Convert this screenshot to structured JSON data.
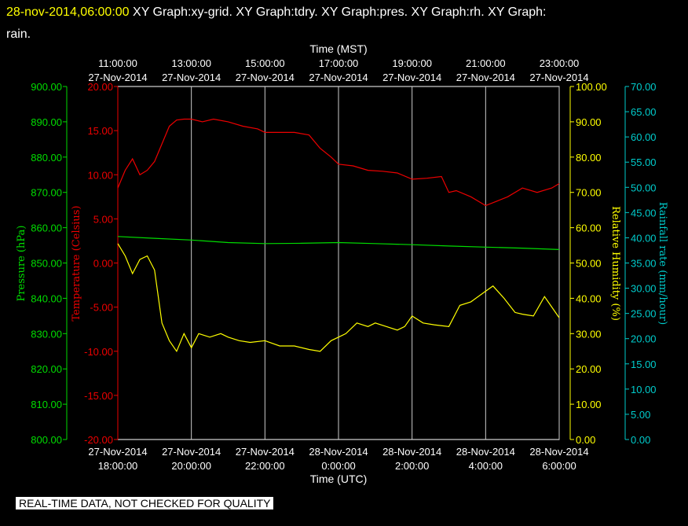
{
  "header": {
    "timestamp": "28-nov-2014,06:00:00",
    "graphs_line1": "  XY Graph:xy-grid.  XY Graph:tdry.  XY Graph:pres.  XY Graph:rh.  XY Graph:",
    "graphs_line2": "rain."
  },
  "footer_note": "REAL-TIME DATA, NOT CHECKED FOR QUALITY",
  "colors": {
    "pressure": "#00dd00",
    "temperature": "#ee0000",
    "humidity": "#ffff00",
    "rain": "#00cccc",
    "grid": "#cccccc"
  },
  "chart_data": {
    "type": "line",
    "x_top_label": "Time (MST)",
    "x_bottom_label": "Time (UTC)",
    "x_range_utc_hours": [
      18,
      30
    ],
    "x_ticks_utc_hours": [
      18,
      20,
      22,
      24,
      26,
      28,
      30
    ],
    "x_top_ticks": [
      {
        "time": "11:00:00",
        "date": "27-Nov-2014"
      },
      {
        "time": "13:00:00",
        "date": "27-Nov-2014"
      },
      {
        "time": "15:00:00",
        "date": "27-Nov-2014"
      },
      {
        "time": "17:00:00",
        "date": "27-Nov-2014"
      },
      {
        "time": "19:00:00",
        "date": "27-Nov-2014"
      },
      {
        "time": "21:00:00",
        "date": "27-Nov-2014"
      },
      {
        "time": "23:00:00",
        "date": "27-Nov-2014"
      }
    ],
    "x_bottom_ticks": [
      {
        "date": "27-Nov-2014",
        "time": "18:00:00"
      },
      {
        "date": "27-Nov-2014",
        "time": "20:00:00"
      },
      {
        "date": "27-Nov-2014",
        "time": "22:00:00"
      },
      {
        "date": "28-Nov-2014",
        "time": "0:00:00"
      },
      {
        "date": "28-Nov-2014",
        "time": "2:00:00"
      },
      {
        "date": "28-Nov-2014",
        "time": "4:00:00"
      },
      {
        "date": "28-Nov-2014",
        "time": "6:00:00"
      }
    ],
    "axes": {
      "pressure": {
        "label": "Pressure (hPa)",
        "range": [
          800,
          900
        ],
        "ticks": [
          "800.00",
          "810.00",
          "820.00",
          "830.00",
          "840.00",
          "850.00",
          "860.00",
          "870.00",
          "880.00",
          "890.00",
          "900.00"
        ]
      },
      "temperature": {
        "label": "Temperature (Celsius)",
        "range": [
          -20,
          20
        ],
        "ticks": [
          "-20.00",
          "-15.00",
          "-10.00",
          "-5.00",
          "0.00",
          "5.00",
          "10.00",
          "15.00",
          "20.00"
        ]
      },
      "humidity": {
        "label": "Relative Humidity (%)",
        "range": [
          0,
          100
        ],
        "ticks": [
          "0.00",
          "10.00",
          "20.00",
          "30.00",
          "40.00",
          "50.00",
          "60.00",
          "70.00",
          "80.00",
          "90.00",
          "100.00"
        ]
      },
      "rain": {
        "label": "Rainfall rate (mm/hour)",
        "range": [
          0,
          70
        ],
        "ticks": [
          "0.00",
          "5.00",
          "10.00",
          "15.00",
          "20.00",
          "25.00",
          "30.00",
          "35.00",
          "40.00",
          "45.00",
          "50.00",
          "55.00",
          "60.00",
          "65.00",
          "70.00"
        ]
      }
    },
    "series": [
      {
        "name": "tdry",
        "axis": "temperature",
        "x": [
          18.0,
          18.2,
          18.4,
          18.6,
          18.8,
          19.0,
          19.2,
          19.4,
          19.6,
          19.8,
          20.0,
          20.3,
          20.6,
          21.0,
          21.4,
          21.8,
          22.0,
          22.4,
          22.8,
          23.2,
          23.5,
          23.8,
          24.0,
          24.4,
          24.8,
          25.2,
          25.6,
          26.0,
          26.4,
          26.8,
          27.0,
          27.2,
          27.6,
          28.0,
          28.3,
          28.6,
          29.0,
          29.4,
          29.8,
          30.0
        ],
        "y": [
          8.5,
          10.5,
          11.8,
          10.0,
          10.5,
          11.5,
          13.5,
          15.5,
          16.2,
          16.3,
          16.3,
          16.0,
          16.3,
          16.0,
          15.5,
          15.2,
          14.8,
          14.8,
          14.8,
          14.5,
          13.0,
          12.0,
          11.2,
          11.0,
          10.5,
          10.4,
          10.2,
          9.5,
          9.6,
          9.8,
          8.0,
          8.2,
          7.5,
          6.5,
          7.0,
          7.5,
          8.5,
          8.0,
          8.5,
          9.0
        ]
      },
      {
        "name": "pres",
        "axis": "pressure",
        "x": [
          18.0,
          19.0,
          20.0,
          21.0,
          22.0,
          23.0,
          24.0,
          25.0,
          26.0,
          27.0,
          28.0,
          29.0,
          30.0
        ],
        "y": [
          857.5,
          857.0,
          856.5,
          855.8,
          855.5,
          855.6,
          855.8,
          855.5,
          855.2,
          854.8,
          854.5,
          854.2,
          853.8
        ]
      },
      {
        "name": "rh",
        "axis": "humidity",
        "x": [
          18.0,
          18.2,
          18.4,
          18.6,
          18.8,
          19.0,
          19.2,
          19.4,
          19.6,
          19.8,
          20.0,
          20.2,
          20.5,
          20.8,
          21.0,
          21.3,
          21.6,
          22.0,
          22.4,
          22.8,
          23.2,
          23.5,
          23.8,
          24.0,
          24.2,
          24.5,
          24.8,
          25.0,
          25.3,
          25.6,
          25.8,
          26.0,
          26.3,
          26.6,
          27.0,
          27.3,
          27.6,
          28.0,
          28.2,
          28.5,
          28.8,
          29.0,
          29.3,
          29.6,
          30.0
        ],
        "y": [
          55.5,
          52.0,
          47.0,
          51.0,
          52.0,
          48.0,
          33.0,
          28.0,
          25.0,
          30.0,
          26.0,
          30.0,
          29.0,
          30.0,
          29.0,
          28.0,
          27.5,
          28.0,
          26.5,
          26.5,
          25.5,
          25.0,
          28.0,
          29.0,
          30.0,
          33.0,
          32.0,
          33.0,
          32.0,
          31.0,
          32.0,
          35.0,
          33.0,
          32.5,
          32.0,
          38.0,
          39.0,
          42.0,
          43.5,
          40.0,
          36.0,
          35.5,
          35.0,
          40.5,
          34.5
        ]
      }
    ]
  }
}
